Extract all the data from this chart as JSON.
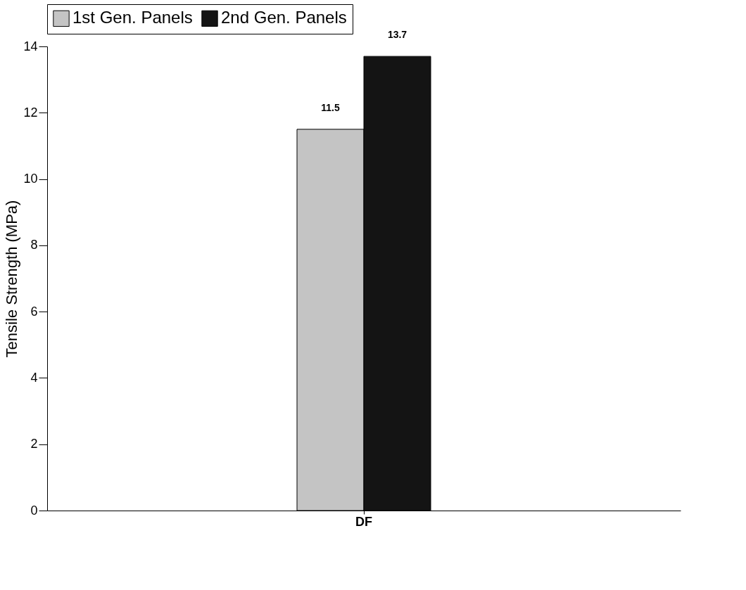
{
  "chart_data": {
    "type": "bar",
    "categories": [
      "DF"
    ],
    "ylabel": "Tensile Strength (MPa)",
    "ylim": [
      0,
      14
    ],
    "yticks": [
      0,
      2,
      4,
      6,
      8,
      10,
      12,
      14
    ],
    "series": [
      {
        "name": "1st Gen. Panels",
        "color": "#c4c4c4",
        "values": [
          11.5
        ]
      },
      {
        "name": "2nd Gen. Panels",
        "color": "#141414",
        "values": [
          13.7
        ]
      }
    ],
    "data_labels": true,
    "legend": "top",
    "grid": false
  }
}
